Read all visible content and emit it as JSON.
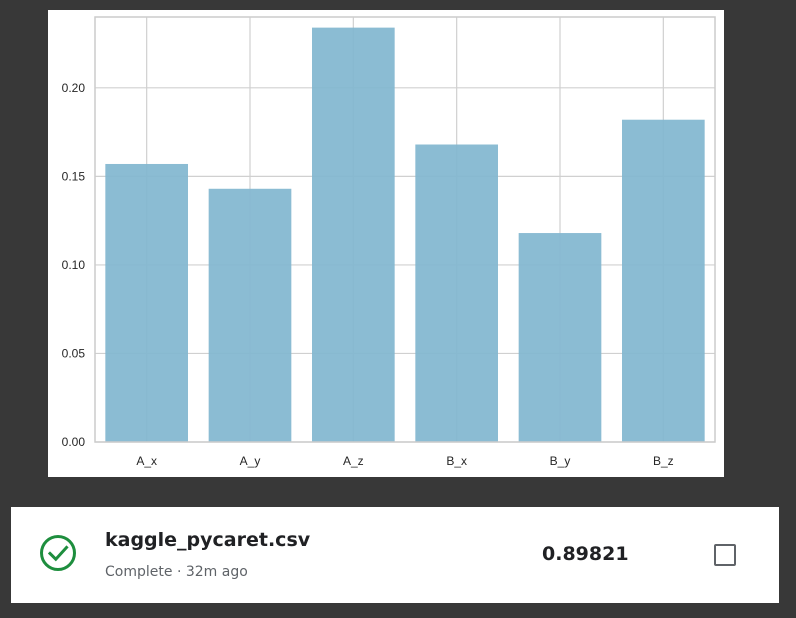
{
  "chart_data": {
    "type": "bar",
    "categories": [
      "A_x",
      "A_y",
      "A_z",
      "B_x",
      "B_y",
      "B_z"
    ],
    "values": [
      0.157,
      0.143,
      0.234,
      0.168,
      0.118,
      0.182
    ],
    "ylim": [
      0,
      0.24
    ],
    "yticks": [
      0.0,
      0.05,
      0.1,
      0.15,
      0.2
    ],
    "ytick_labels": [
      "0.00",
      "0.05",
      "0.10",
      "0.15",
      "0.20"
    ],
    "grid": true,
    "bar_color": "#81b6cf",
    "title": "",
    "xlabel": "",
    "ylabel": ""
  },
  "submission": {
    "file_name": "kaggle_pycaret.csv",
    "status": "Complete",
    "separator": "·",
    "time_ago": "32m ago",
    "score": "0.89821",
    "status_icon": "check-circle-icon",
    "status_color": "#1e8e3e"
  }
}
